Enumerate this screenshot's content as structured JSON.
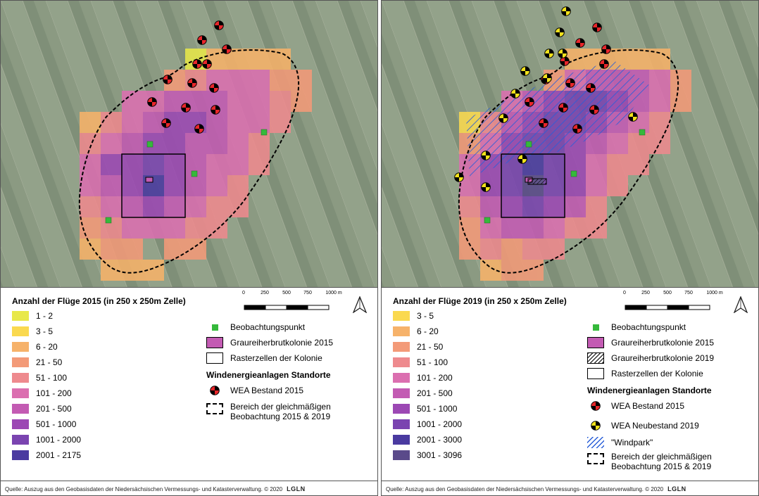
{
  "left": {
    "legend_title": "Anzahl der Flüge 2015 (in 250 x 250m Zelle)",
    "classes": [
      {
        "label": "1 - 2",
        "color": "#e8e84a"
      },
      {
        "label": "3 - 5",
        "color": "#fad94f"
      },
      {
        "label": "6 - 20",
        "color": "#f6b26a"
      },
      {
        "label": "21 - 50",
        "color": "#f39a78"
      },
      {
        "label": "51 - 100",
        "color": "#ee8a8e"
      },
      {
        "label": "101 - 200",
        "color": "#db6fb0"
      },
      {
        "label": "201 - 500",
        "color": "#c35bb3"
      },
      {
        "label": "501 - 1000",
        "color": "#9c48b4"
      },
      {
        "label": "1001 - 2000",
        "color": "#7a44b0"
      },
      {
        "label": "2001 - 2175",
        "color": "#4a3aa0"
      }
    ],
    "symbols": {
      "beobachtungspunkt": "Beobachtungspunkt",
      "kolonie": "Graureiherbrutkolonie 2015",
      "rasterzellen": "Rasterzellen der Kolonie",
      "heading": "Windenergieanlagen Standorte",
      "wea_bestand": "WEA Bestand 2015",
      "bereich_line1": "Bereich der gleichmäßigen",
      "bereich_line2": "Beobachtung 2015 & 2019"
    },
    "scale": {
      "labels": [
        "0",
        "250",
        "500",
        "750",
        "1000 m"
      ]
    },
    "source": "Quelle: Auszug aus den Geobasisdaten der Niedersächsischen Vermessungs- und Katasterverwaltung. © 2020",
    "logo": "LGLN"
  },
  "right": {
    "legend_title": "Anzahl der Flüge 2019 (in 250 x 250m Zelle)",
    "classes": [
      {
        "label": "3 - 5",
        "color": "#fad94f"
      },
      {
        "label": "6 - 20",
        "color": "#f6b26a"
      },
      {
        "label": "21 - 50",
        "color": "#f39a78"
      },
      {
        "label": "51 - 100",
        "color": "#ee8a8e"
      },
      {
        "label": "101 - 200",
        "color": "#db6fb0"
      },
      {
        "label": "201 - 500",
        "color": "#c35bb3"
      },
      {
        "label": "501 - 1000",
        "color": "#9c48b4"
      },
      {
        "label": "1001 - 2000",
        "color": "#7a44b0"
      },
      {
        "label": "2001 - 3000",
        "color": "#4a3aa0"
      },
      {
        "label": "3001 - 3096",
        "color": "#5a4a8a"
      }
    ],
    "symbols": {
      "beobachtungspunkt": "Beobachtungspunkt",
      "kolonie2015": "Graureiherbrutkolonie 2015",
      "kolonie2019": "Graureiherbrutkolonie 2019",
      "rasterzellen": "Rasterzellen der Kolonie",
      "heading": "Windenergieanlagen Standorte",
      "wea_bestand": "WEA Bestand 2015",
      "wea_neubestand": "WEA Neubestand 2019",
      "windpark": "\"Windpark\"",
      "bereich_line1": "Bereich der gleichmäßigen",
      "bereich_line2": "Beobachtung 2015 & 2019"
    },
    "scale": {
      "labels": [
        "0",
        "250",
        "500",
        "750",
        "1000 m"
      ]
    },
    "source": "Quelle: Auszug aus den Geobasisdaten der Niedersächsischen Vermessungs- und Katasterverwaltung. © 2020",
    "logo": "LGLN"
  }
}
